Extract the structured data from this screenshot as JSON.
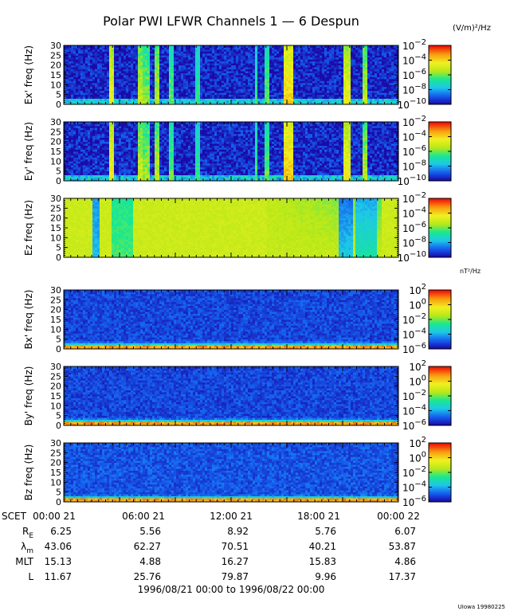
{
  "title": "Polar PWI LFWR Channels 1 — 6 Despun",
  "units_e": "(V/m)²/Hz",
  "units_b": "nT²/Hz",
  "footer_credit": "UIowa 19980225",
  "time_range": "1996/08/21 00:00 to 1996/08/22 00:00",
  "colors": {
    "background": "#ffffff",
    "colormap": [
      "#1a0aa8",
      "#1560f0",
      "#1ec8e8",
      "#18e890",
      "#b8e818",
      "#f0f020",
      "#f8a010",
      "#f01808"
    ]
  },
  "chart_data": [
    {
      "type": "heatmap",
      "ylabel": "Ex' freq (Hz)",
      "yticks": [
        "0",
        "5",
        "10",
        "15",
        "20",
        "25",
        "30"
      ],
      "ylim": [
        0,
        30
      ],
      "colorbar": {
        "ticks": [
          {
            "base": "10",
            "exp": "−2"
          },
          {
            "base": "10",
            "exp": "−4"
          },
          {
            "base": "10",
            "exp": "−6"
          },
          {
            "base": "10",
            "exp": "−8"
          },
          {
            "base": "10",
            "exp": "−10"
          }
        ],
        "range_log10": [
          -10,
          -2
        ]
      },
      "profile": "E",
      "baseline_level": 0.05,
      "bursts": [
        [
          0.13,
          0.145,
          0.7
        ],
        [
          0.215,
          0.23,
          0.62
        ],
        [
          0.235,
          0.25,
          0.55
        ],
        [
          0.265,
          0.28,
          0.6
        ],
        [
          0.31,
          0.325,
          0.5
        ],
        [
          0.39,
          0.4,
          0.45
        ],
        [
          0.565,
          0.575,
          0.45
        ],
        [
          0.6,
          0.61,
          0.5
        ],
        [
          0.655,
          0.685,
          0.78
        ],
        [
          0.835,
          0.85,
          0.7
        ],
        [
          0.89,
          0.9,
          0.6
        ]
      ],
      "noise_level": 0.18
    },
    {
      "type": "heatmap",
      "ylabel": "Ey' freq (Hz)",
      "yticks": [
        "0",
        "5",
        "10",
        "15",
        "20",
        "25",
        "30"
      ],
      "ylim": [
        0,
        30
      ],
      "colorbar": {
        "ticks": [
          {
            "base": "10",
            "exp": "−2"
          },
          {
            "base": "10",
            "exp": "−4"
          },
          {
            "base": "10",
            "exp": "−6"
          },
          {
            "base": "10",
            "exp": "−8"
          },
          {
            "base": "10",
            "exp": "−10"
          }
        ],
        "range_log10": [
          -10,
          -2
        ]
      },
      "profile": "E",
      "baseline_level": 0.05,
      "bursts": [
        [
          0.13,
          0.145,
          0.72
        ],
        [
          0.215,
          0.23,
          0.63
        ],
        [
          0.235,
          0.25,
          0.56
        ],
        [
          0.265,
          0.28,
          0.6
        ],
        [
          0.31,
          0.325,
          0.52
        ],
        [
          0.39,
          0.4,
          0.45
        ],
        [
          0.565,
          0.575,
          0.48
        ],
        [
          0.6,
          0.61,
          0.5
        ],
        [
          0.655,
          0.685,
          0.8
        ],
        [
          0.835,
          0.85,
          0.72
        ],
        [
          0.89,
          0.9,
          0.6
        ]
      ],
      "noise_level": 0.2
    },
    {
      "type": "heatmap",
      "ylabel": "Ez freq (Hz)",
      "yticks": [
        "0",
        "5",
        "10",
        "15",
        "20",
        "25",
        "30"
      ],
      "ylim": [
        0,
        30
      ],
      "colorbar": {
        "ticks": [
          {
            "base": "10",
            "exp": "−2"
          },
          {
            "base": "10",
            "exp": "−4"
          },
          {
            "base": "10",
            "exp": "−6"
          },
          {
            "base": "10",
            "exp": "−8"
          },
          {
            "base": "10",
            "exp": "−10"
          }
        ],
        "range_log10": [
          -10,
          -2
        ]
      },
      "profile": "Ez",
      "baseline_level": 0.62,
      "dips": [
        [
          0.085,
          0.105,
          0.35
        ],
        [
          0.14,
          0.2,
          0.15
        ],
        [
          0.82,
          0.86,
          0.3
        ],
        [
          0.87,
          0.93,
          0.2
        ]
      ],
      "noise_level": 0.05
    },
    {
      "type": "heatmap",
      "ylabel": "Bx' freq (Hz)",
      "yticks": [
        "0",
        "5",
        "10",
        "15",
        "20",
        "25",
        "30"
      ],
      "ylim": [
        0,
        30
      ],
      "colorbar": {
        "ticks": [
          {
            "base": "10",
            "exp": "2"
          },
          {
            "base": "10",
            "exp": "0"
          },
          {
            "base": "10",
            "exp": "−2"
          },
          {
            "base": "10",
            "exp": "−4"
          },
          {
            "base": "10",
            "exp": "−6"
          }
        ],
        "range_log10": [
          -6,
          2
        ]
      },
      "profile": "B",
      "baseline_level": 0.1,
      "noise_level": 0.12
    },
    {
      "type": "heatmap",
      "ylabel": "By' freq (Hz)",
      "yticks": [
        "0",
        "5",
        "10",
        "15",
        "20",
        "25",
        "30"
      ],
      "ylim": [
        0,
        30
      ],
      "colorbar": {
        "ticks": [
          {
            "base": "10",
            "exp": "2"
          },
          {
            "base": "10",
            "exp": "0"
          },
          {
            "base": "10",
            "exp": "−2"
          },
          {
            "base": "10",
            "exp": "−4"
          },
          {
            "base": "10",
            "exp": "−6"
          }
        ],
        "range_log10": [
          -6,
          2
        ]
      },
      "profile": "B",
      "baseline_level": 0.1,
      "noise_level": 0.12
    },
    {
      "type": "heatmap",
      "ylabel": "Bz freq (Hz)",
      "yticks": [
        "0",
        "5",
        "10",
        "15",
        "20",
        "25",
        "30"
      ],
      "ylim": [
        0,
        30
      ],
      "colorbar": {
        "ticks": [
          {
            "base": "10",
            "exp": "2"
          },
          {
            "base": "10",
            "exp": "0"
          },
          {
            "base": "10",
            "exp": "−2"
          },
          {
            "base": "10",
            "exp": "−4"
          },
          {
            "base": "10",
            "exp": "−6"
          }
        ],
        "range_log10": [
          -6,
          2
        ]
      },
      "profile": "B",
      "baseline_level": 0.12,
      "noise_level": 0.12
    }
  ],
  "ephemeris": {
    "scet_label": "SCET",
    "scet": [
      "00:00 21",
      "06:00 21",
      "12:00 21",
      "18:00 21",
      "00:00 22"
    ],
    "rows": [
      {
        "label": "R",
        "sub": "E",
        "values": [
          "6.25",
          "5.56",
          "8.92",
          "5.76",
          "6.07"
        ]
      },
      {
        "label": "λ",
        "sub": "m",
        "values": [
          "43.06",
          "62.27",
          "70.51",
          "40.21",
          "53.87"
        ]
      },
      {
        "label": "MLT",
        "sub": "",
        "values": [
          "15.13",
          "4.88",
          "16.27",
          "15.83",
          "4.86"
        ]
      },
      {
        "label": "L",
        "sub": "",
        "values": [
          "11.67",
          "25.76",
          "79.87",
          "9.96",
          "17.37"
        ]
      }
    ]
  }
}
